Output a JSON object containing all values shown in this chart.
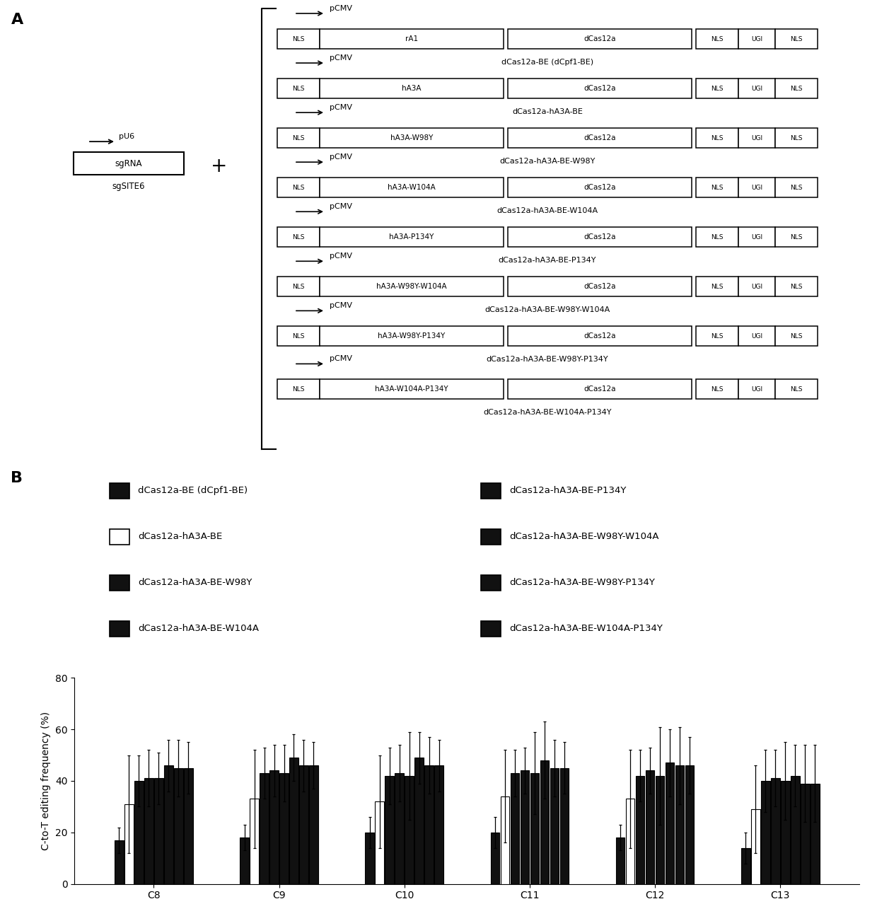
{
  "panel_A_label": "A",
  "panel_B_label": "B",
  "constructs": [
    {
      "name": "dCas12a-BE (dCpf1-BE)",
      "deaminase": "rA1"
    },
    {
      "name": "dCas12a-hA3A-BE",
      "deaminase": "hA3A"
    },
    {
      "name": "dCas12a-hA3A-BE-W98Y",
      "deaminase": "hA3A-W98Y"
    },
    {
      "name": "dCas12a-hA3A-BE-W104A",
      "deaminase": "hA3A-W104A"
    },
    {
      "name": "dCas12a-hA3A-BE-P134Y",
      "deaminase": "hA3A-P134Y"
    },
    {
      "name": "dCas12a-hA3A-BE-W98Y-W104A",
      "deaminase": "hA3A-W98Y-W104A"
    },
    {
      "name": "dCas12a-hA3A-BE-W98Y-P134Y",
      "deaminase": "hA3A-W98Y-P134Y"
    },
    {
      "name": "dCas12a-hA3A-BE-W104A-P134Y",
      "deaminase": "hA3A-W104A-P134Y"
    }
  ],
  "sgrna_label": "sgRNA",
  "sgrna_sublabel": "sgSITE6",
  "pu6_label": "pU6",
  "categories": [
    "C8",
    "C9",
    "C10",
    "C11",
    "C12",
    "C13"
  ],
  "bar_colors": [
    "#111111",
    "#ffffff",
    "#111111",
    "#111111",
    "#111111",
    "#111111",
    "#111111",
    "#111111"
  ],
  "bar_edgecolors": [
    "#000000",
    "#000000",
    "#000000",
    "#000000",
    "#000000",
    "#000000",
    "#000000",
    "#000000"
  ],
  "legend_labels": [
    "dCas12a-BE (dCpf1-BE)",
    "dCas12a-hA3A-BE",
    "dCas12a-hA3A-BE-W98Y",
    "dCas12a-hA3A-BE-W104A",
    "dCas12a-hA3A-BE-P134Y",
    "dCas12a-hA3A-BE-W98Y-W104A",
    "dCas12a-hA3A-BE-W98Y-P134Y",
    "dCas12a-hA3A-BE-W104A-P134Y"
  ],
  "bar_values": {
    "C8": [
      17,
      31,
      40,
      41,
      41,
      46,
      45,
      45
    ],
    "C9": [
      18,
      33,
      43,
      44,
      43,
      49,
      46,
      46
    ],
    "C10": [
      20,
      32,
      42,
      43,
      42,
      49,
      46,
      46
    ],
    "C11": [
      20,
      34,
      43,
      44,
      43,
      48,
      45,
      45
    ],
    "C12": [
      18,
      33,
      42,
      44,
      42,
      47,
      46,
      46
    ],
    "C13": [
      14,
      29,
      40,
      41,
      40,
      42,
      39,
      39
    ]
  },
  "bar_errors": {
    "C8": [
      5,
      19,
      10,
      11,
      10,
      10,
      11,
      10
    ],
    "C9": [
      5,
      19,
      10,
      10,
      11,
      9,
      10,
      9
    ],
    "C10": [
      6,
      18,
      11,
      11,
      17,
      10,
      11,
      10
    ],
    "C11": [
      6,
      18,
      9,
      9,
      16,
      15,
      11,
      10
    ],
    "C12": [
      5,
      19,
      10,
      9,
      19,
      13,
      15,
      11
    ],
    "C13": [
      6,
      17,
      12,
      11,
      15,
      12,
      15,
      15
    ]
  },
  "ylabel": "C-to-T editing frequency (%)",
  "ylim": [
    0,
    80
  ],
  "yticks": [
    0,
    20,
    40,
    60,
    80
  ],
  "background_color": "#ffffff",
  "fig_width": 12.4,
  "fig_height": 12.95,
  "dpi": 100
}
